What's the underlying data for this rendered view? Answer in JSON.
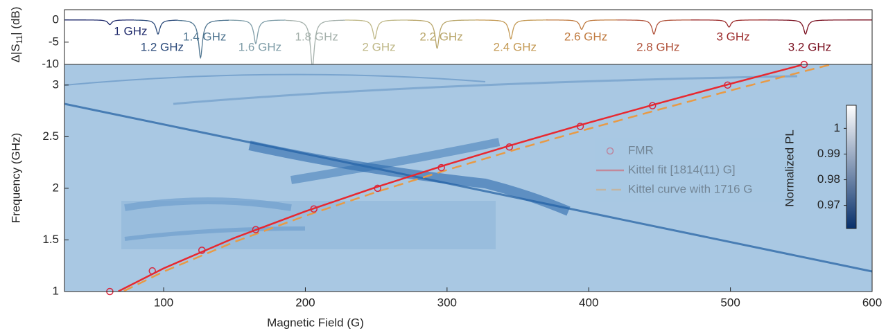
{
  "chart_data": [
    {
      "type": "spectra",
      "ylabel": {
        "lead": "Δ|S",
        "sub": "11",
        "tail": "| (dB)"
      },
      "xlim": [
        30,
        600
      ],
      "ylim": [
        -10,
        2.3
      ],
      "yticks": [
        0,
        -5,
        -10
      ],
      "series": [
        {
          "name": "1 GHz",
          "color": "#1f2a6b",
          "range": [
            30,
            79
          ],
          "dip": 62,
          "depth": -1
        },
        {
          "name": "1.2 GHz",
          "color": "#2b4a7a",
          "range": [
            79,
            110
          ],
          "dip": 96,
          "depth": -3
        },
        {
          "name": "1.4 GHz",
          "color": "#4f7590",
          "range": [
            110,
            146
          ],
          "dip": 126,
          "depth": -8
        },
        {
          "name": "1.6 GHz",
          "color": "#7f9da8",
          "range": [
            146,
            186
          ],
          "dip": 165,
          "depth": -5
        },
        {
          "name": "1.8 GHz",
          "color": "#a4b0ab",
          "range": [
            186,
            228
          ],
          "dip": 205,
          "depth": -10
        },
        {
          "name": "2 GHz",
          "color": "#bfb888",
          "range": [
            228,
            272
          ],
          "dip": 249,
          "depth": -4
        },
        {
          "name": "2.2 GHz",
          "color": "#b9a66a",
          "range": [
            272,
            320
          ],
          "dip": 293,
          "depth": -6
        },
        {
          "name": "2.4 GHz",
          "color": "#c49a55",
          "range": [
            320,
            370
          ],
          "dip": 345,
          "depth": -4
        },
        {
          "name": "2.6 GHz",
          "color": "#c07b40",
          "range": [
            370,
            420
          ],
          "dip": 395,
          "depth": -2
        },
        {
          "name": "2.8 GHz",
          "color": "#b0523a",
          "range": [
            420,
            472
          ],
          "dip": 446,
          "depth": -3
        },
        {
          "name": "3 GHz",
          "color": "#9b2a2a",
          "range": [
            472,
            526
          ],
          "dip": 499,
          "depth": -1.5
        },
        {
          "name": "3.2 GHz",
          "color": "#7a1020",
          "range": [
            526,
            600
          ],
          "dip": 553,
          "depth": -3
        }
      ]
    },
    {
      "type": "heatmap-overlay",
      "xlabel": "Magnetic Field (G)",
      "ylabel": "Frequency (GHz)",
      "xlim": [
        30,
        600
      ],
      "ylim": [
        1,
        3.2
      ],
      "xticks": [
        100,
        200,
        300,
        400,
        500,
        600
      ],
      "yticks": [
        1,
        1.5,
        2,
        2.5,
        3
      ],
      "colorbar": {
        "label": "Normalized PL",
        "clim": [
          0.961,
          1.009
        ],
        "ticks": [
          0.97,
          0.98,
          0.99,
          1
        ],
        "colors": [
          "#08306b",
          "#ffffff"
        ]
      },
      "series": [
        {
          "name": "FMR",
          "kind": "marker",
          "color": "#d7263d",
          "x": [
            62,
            92,
            127,
            165,
            206,
            251,
            296,
            344,
            394,
            445,
            498,
            552
          ],
          "y": [
            1,
            1.2,
            1.4,
            1.6,
            1.8,
            2.0,
            2.2,
            2.4,
            2.6,
            2.8,
            3.0,
            3.2
          ]
        },
        {
          "name": "Kittel fit [1814(11) G]",
          "kind": "solid",
          "color": "#e8282f",
          "x": [
            68,
            100,
            150,
            200,
            250,
            300,
            350,
            400,
            450,
            500,
            550
          ],
          "y": [
            1.002,
            1.225,
            1.52,
            1.777,
            2.011,
            2.23,
            2.437,
            2.635,
            2.826,
            3.012,
            3.193
          ]
        },
        {
          "name": "Kittel curve with 1716 G",
          "kind": "dashed",
          "color": "#e89a45",
          "x": [
            72,
            100,
            150,
            200,
            250,
            300,
            350,
            400,
            450,
            500,
            550,
            570
          ],
          "y": [
            1.005,
            1.193,
            1.481,
            1.733,
            1.963,
            2.178,
            2.381,
            2.576,
            2.764,
            2.947,
            3.126,
            3.196
          ]
        }
      ]
    }
  ]
}
